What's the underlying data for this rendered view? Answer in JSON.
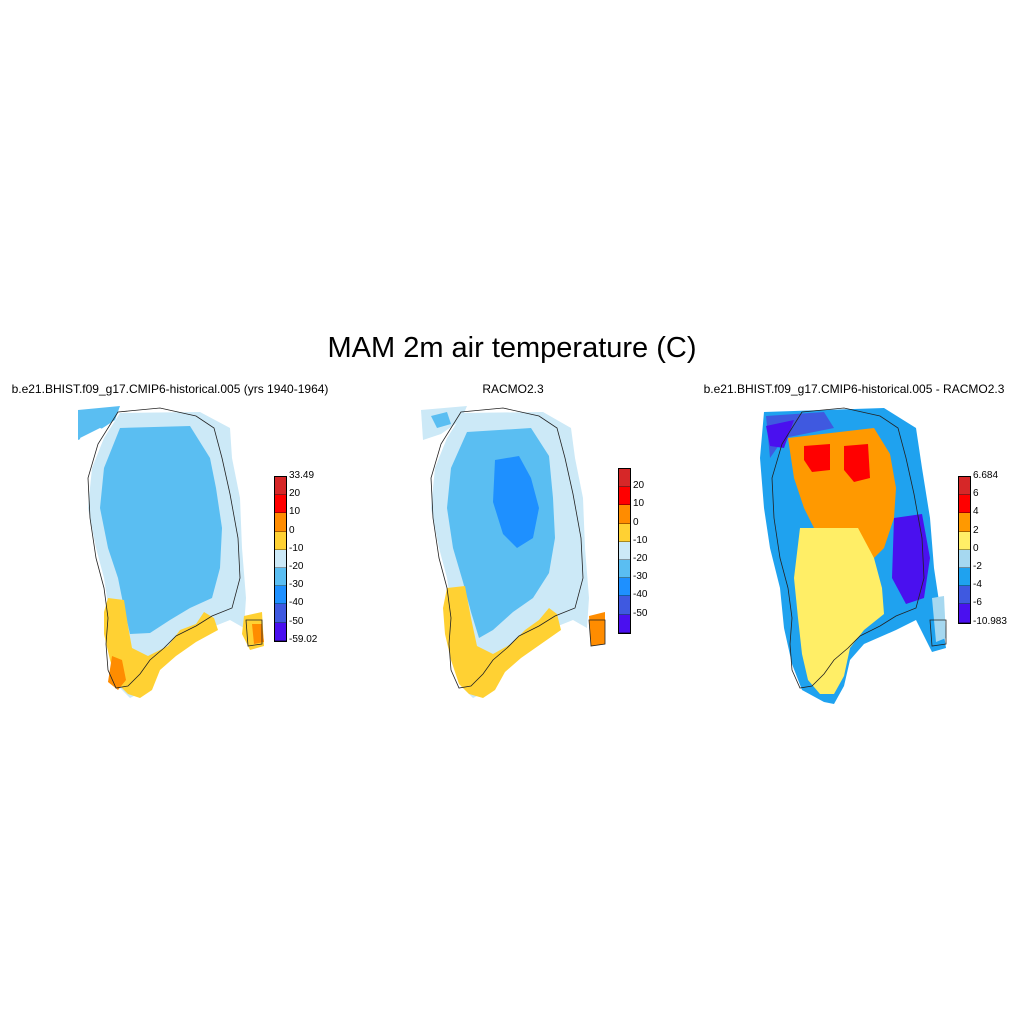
{
  "figure": {
    "title": "MAM 2m air temperature (C)"
  },
  "panels": [
    {
      "title": "b.e21.BHIST.f09_g17.CMIP6-historical.005 (yrs 1940-1964)",
      "colorbar": {
        "labels": [
          "33.49",
          "20",
          "10",
          "0",
          "-10",
          "-20",
          "-30",
          "-40",
          "-50",
          "-59.02"
        ],
        "colors": [
          "#d62728",
          "#ff0000",
          "#ff8c00",
          "#ffd133",
          "#cce9f7",
          "#5abef2",
          "#1e90ff",
          "#3f59e0",
          "#4a10ef"
        ]
      }
    },
    {
      "title": "RACMO2.3",
      "colorbar": {
        "labels": [
          "20",
          "10",
          "0",
          "-10",
          "-20",
          "-30",
          "-40",
          "-50"
        ],
        "colors": [
          "#d62728",
          "#ff0000",
          "#ff8c00",
          "#ffd133",
          "#cce9f7",
          "#5abef2",
          "#1e90ff",
          "#3f59e0",
          "#4a10ef"
        ]
      }
    },
    {
      "title": "b.e21.BHIST.f09_g17.CMIP6-historical.005 - RACMO2.3",
      "colorbar": {
        "labels": [
          "6.684",
          "6",
          "4",
          "2",
          "0",
          "-2",
          "-4",
          "-6",
          "-10.983"
        ],
        "colors": [
          "#d62728",
          "#ff0000",
          "#ff9900",
          "#ffee66",
          "#a6d8f0",
          "#1fa2ef",
          "#3f59e0",
          "#4a10ef"
        ]
      }
    }
  ]
}
